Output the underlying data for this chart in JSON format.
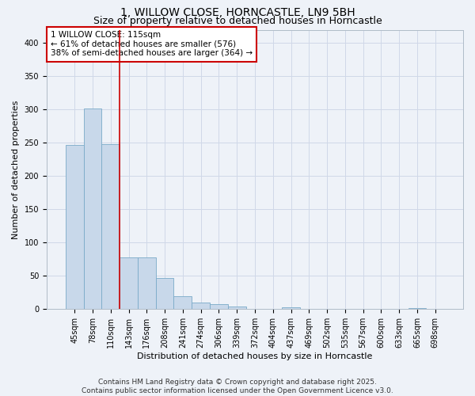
{
  "title_line1": "1, WILLOW CLOSE, HORNCASTLE, LN9 5BH",
  "title_line2": "Size of property relative to detached houses in Horncastle",
  "xlabel": "Distribution of detached houses by size in Horncastle",
  "ylabel": "Number of detached properties",
  "categories": [
    "45sqm",
    "78sqm",
    "110sqm",
    "143sqm",
    "176sqm",
    "208sqm",
    "241sqm",
    "274sqm",
    "306sqm",
    "339sqm",
    "372sqm",
    "404sqm",
    "437sqm",
    "469sqm",
    "502sqm",
    "535sqm",
    "567sqm",
    "600sqm",
    "633sqm",
    "665sqm",
    "698sqm"
  ],
  "values": [
    247,
    301,
    248,
    78,
    78,
    47,
    20,
    10,
    7,
    4,
    0,
    0,
    3,
    0,
    0,
    0,
    0,
    0,
    0,
    2,
    0
  ],
  "bar_color": "#c8d8ea",
  "bar_edge_color": "#7aaac8",
  "vline_x": 2.5,
  "vline_color": "#cc0000",
  "annotation_text": "1 WILLOW CLOSE: 115sqm\n← 61% of detached houses are smaller (576)\n38% of semi-detached houses are larger (364) →",
  "annotation_box_color": "#cc0000",
  "annotation_bg": "#ffffff",
  "ylim": [
    0,
    420
  ],
  "yticks": [
    0,
    50,
    100,
    150,
    200,
    250,
    300,
    350,
    400
  ],
  "grid_color": "#d0d8e8",
  "background_color": "#eef2f8",
  "footer_line1": "Contains HM Land Registry data © Crown copyright and database right 2025.",
  "footer_line2": "Contains public sector information licensed under the Open Government Licence v3.0.",
  "title_fontsize": 10,
  "subtitle_fontsize": 9,
  "tick_fontsize": 7,
  "ylabel_fontsize": 8,
  "xlabel_fontsize": 8,
  "annotation_fontsize": 7.5,
  "footer_fontsize": 6.5
}
